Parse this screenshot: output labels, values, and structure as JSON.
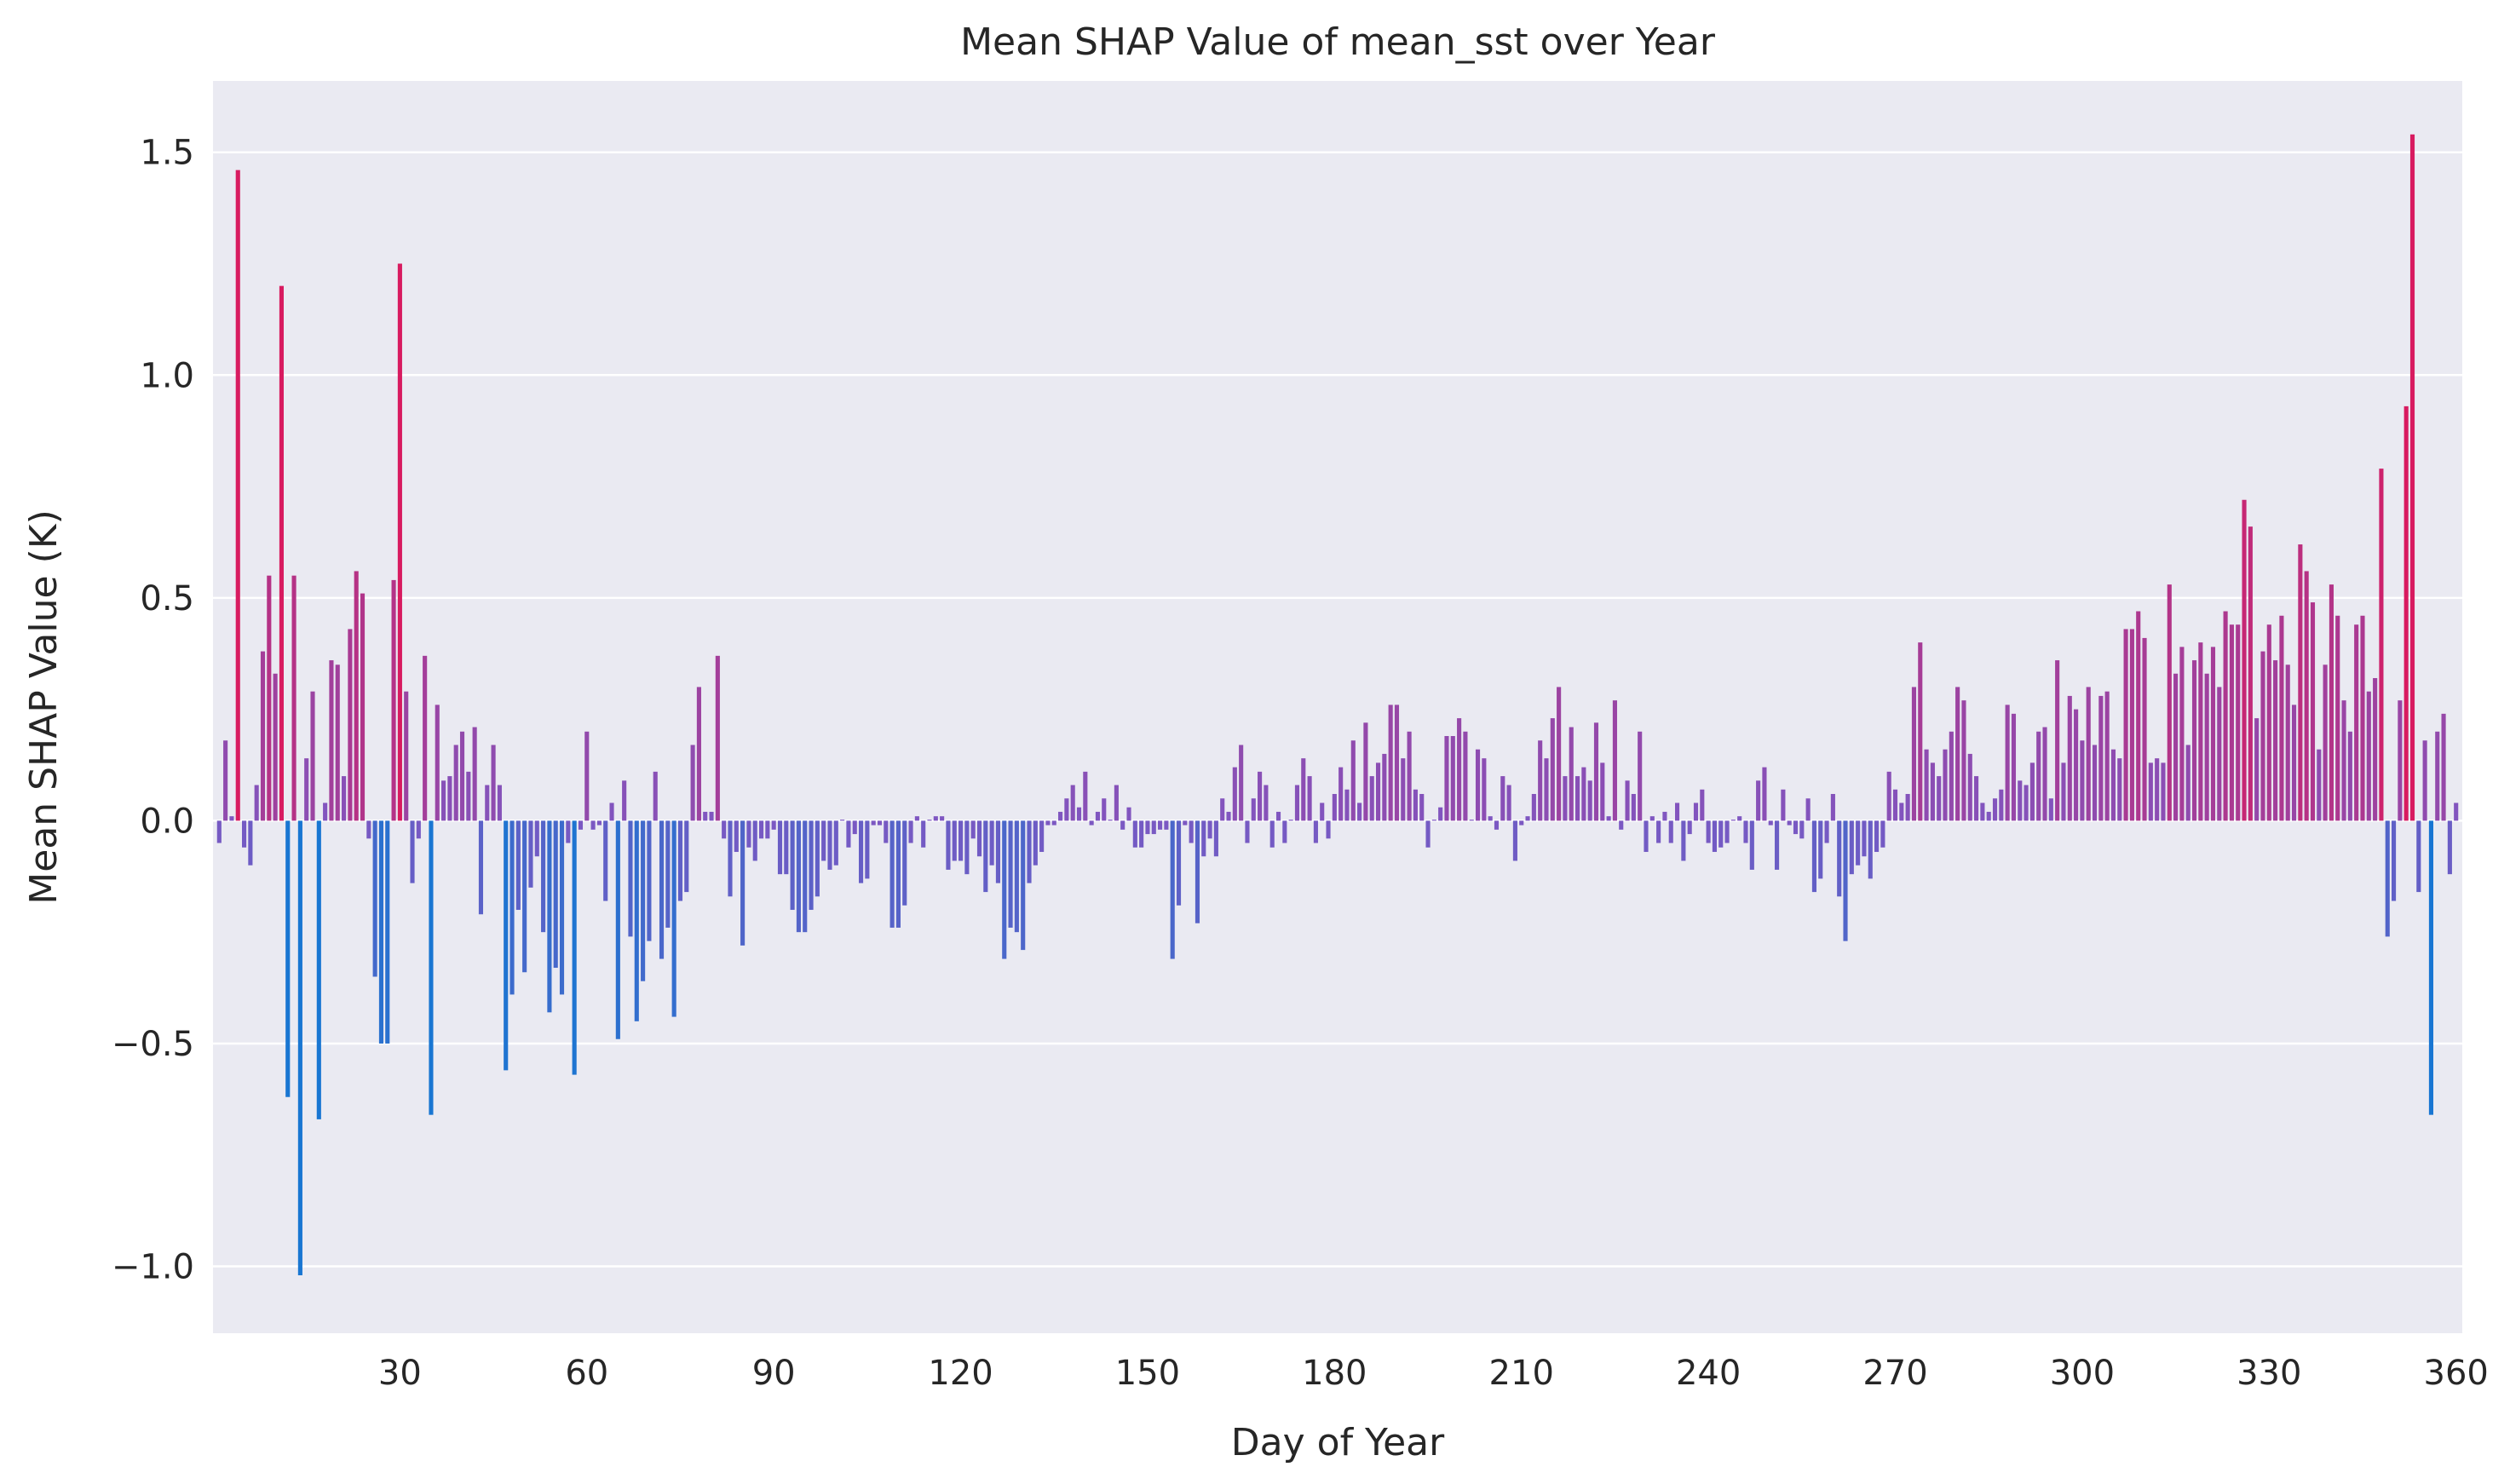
{
  "chart_data": {
    "type": "bar",
    "title": "Mean SHAP Value of mean_sst over Year",
    "xlabel": "Day of Year",
    "ylabel": "Mean SHAP Value (K)",
    "xlim": [
      0,
      361
    ],
    "ylim": [
      -1.15,
      1.66
    ],
    "xticks": [
      30,
      60,
      90,
      120,
      150,
      180,
      210,
      240,
      270,
      300,
      330,
      360
    ],
    "xtick_labels": [
      "30",
      "60",
      "90",
      "120",
      "150",
      "180",
      "210",
      "240",
      "270",
      "300",
      "330",
      "360"
    ],
    "yticks": [
      -1.0,
      -0.5,
      0.0,
      0.5,
      1.0,
      1.5
    ],
    "ytick_labels": [
      "−1.0",
      "−0.5",
      "0.0",
      "0.5",
      "1.0",
      "1.5"
    ],
    "grid": true,
    "colormap": {
      "negative": "#1976d2",
      "neutral": "#7e57c2",
      "positive": "#d81b60"
    },
    "background": "#eaeaf2",
    "x": [
      1,
      2,
      3,
      4,
      5,
      6,
      7,
      8,
      9,
      10,
      11,
      12,
      13,
      14,
      15,
      16,
      17,
      18,
      19,
      20,
      21,
      22,
      23,
      24,
      25,
      26,
      27,
      28,
      29,
      30,
      31,
      32,
      33,
      34,
      35,
      36,
      37,
      38,
      39,
      40,
      41,
      42,
      43,
      44,
      45,
      46,
      47,
      48,
      49,
      50,
      51,
      52,
      53,
      54,
      55,
      56,
      57,
      58,
      59,
      60,
      61,
      62,
      63,
      64,
      65,
      66,
      67,
      68,
      69,
      70,
      71,
      72,
      73,
      74,
      75,
      76,
      77,
      78,
      79,
      80,
      81,
      82,
      83,
      84,
      85,
      86,
      87,
      88,
      89,
      90,
      91,
      92,
      93,
      94,
      95,
      96,
      97,
      98,
      99,
      100,
      101,
      102,
      103,
      104,
      105,
      106,
      107,
      108,
      109,
      110,
      111,
      112,
      113,
      114,
      115,
      116,
      117,
      118,
      119,
      120,
      121,
      122,
      123,
      124,
      125,
      126,
      127,
      128,
      129,
      130,
      131,
      132,
      133,
      134,
      135,
      136,
      137,
      138,
      139,
      140,
      141,
      142,
      143,
      144,
      145,
      146,
      147,
      148,
      149,
      150,
      151,
      152,
      153,
      154,
      155,
      156,
      157,
      158,
      159,
      160,
      161,
      162,
      163,
      164,
      165,
      166,
      167,
      168,
      169,
      170,
      171,
      172,
      173,
      174,
      175,
      176,
      177,
      178,
      179,
      180,
      181,
      182,
      183,
      184,
      185,
      186,
      187,
      188,
      189,
      190,
      191,
      192,
      193,
      194,
      195,
      196,
      197,
      198,
      199,
      200,
      201,
      202,
      203,
      204,
      205,
      206,
      207,
      208,
      209,
      210,
      211,
      212,
      213,
      214,
      215,
      216,
      217,
      218,
      219,
      220,
      221,
      222,
      223,
      224,
      225,
      226,
      227,
      228,
      229,
      230,
      231,
      232,
      233,
      234,
      235,
      236,
      237,
      238,
      239,
      240,
      241,
      242,
      243,
      244,
      245,
      246,
      247,
      248,
      249,
      250,
      251,
      252,
      253,
      254,
      255,
      256,
      257,
      258,
      259,
      260,
      261,
      262,
      263,
      264,
      265,
      266,
      267,
      268,
      269,
      270,
      271,
      272,
      273,
      274,
      275,
      276,
      277,
      278,
      279,
      280,
      281,
      282,
      283,
      284,
      285,
      286,
      287,
      288,
      289,
      290,
      291,
      292,
      293,
      294,
      295,
      296,
      297,
      298,
      299,
      300,
      301,
      302,
      303,
      304,
      305,
      306,
      307,
      308,
      309,
      310,
      311,
      312,
      313,
      314,
      315,
      316,
      317,
      318,
      319,
      320,
      321,
      322,
      323,
      324,
      325,
      326,
      327,
      328,
      329,
      330,
      331,
      332,
      333,
      334,
      335,
      336,
      337,
      338,
      339,
      340,
      341,
      342,
      343,
      344,
      345,
      346,
      347,
      348,
      349,
      350,
      351,
      352,
      353,
      354,
      355,
      356,
      357,
      358,
      359,
      360
    ],
    "values": [
      -0.05,
      0.18,
      0.01,
      1.46,
      -0.06,
      -0.1,
      0.08,
      0.38,
      0.55,
      0.33,
      1.2,
      -0.62,
      0.55,
      -1.02,
      0.14,
      0.29,
      -0.67,
      0.04,
      0.36,
      0.35,
      0.1,
      0.43,
      0.56,
      0.51,
      -0.04,
      -0.35,
      -0.5,
      -0.5,
      0.54,
      1.25,
      0.29,
      -0.14,
      -0.04,
      0.37,
      -0.66,
      0.26,
      0.09,
      0.1,
      0.17,
      0.2,
      0.11,
      0.21,
      -0.21,
      0.08,
      0.17,
      0.08,
      -0.56,
      -0.39,
      -0.2,
      -0.34,
      -0.15,
      -0.08,
      -0.25,
      -0.43,
      -0.33,
      -0.39,
      -0.05,
      -0.57,
      -0.02,
      0.2,
      -0.02,
      -0.01,
      -0.18,
      0.04,
      -0.49,
      0.09,
      -0.26,
      -0.45,
      -0.36,
      -0.27,
      0.11,
      -0.31,
      -0.24,
      -0.44,
      -0.18,
      -0.16,
      0.17,
      0.3,
      0.02,
      0.02,
      0.37,
      -0.04,
      -0.17,
      -0.07,
      -0.28,
      -0.06,
      -0.09,
      -0.04,
      -0.04,
      -0.02,
      -0.12,
      -0.12,
      -0.2,
      -0.25,
      -0.25,
      -0.2,
      -0.17,
      -0.09,
      -0.11,
      -0.1,
      0.0,
      -0.06,
      -0.03,
      -0.14,
      -0.13,
      -0.01,
      -0.01,
      -0.05,
      -0.24,
      -0.24,
      -0.19,
      -0.05,
      0.01,
      -0.06,
      0.0,
      0.01,
      0.01,
      -0.11,
      -0.09,
      -0.09,
      -0.12,
      -0.04,
      -0.08,
      -0.16,
      -0.1,
      -0.14,
      -0.31,
      -0.24,
      -0.25,
      -0.29,
      -0.14,
      -0.1,
      -0.07,
      -0.01,
      -0.01,
      0.02,
      0.05,
      0.08,
      0.03,
      0.11,
      -0.01,
      0.02,
      0.05,
      0.0,
      0.08,
      -0.02,
      0.03,
      -0.06,
      -0.06,
      -0.03,
      -0.03,
      -0.02,
      -0.02,
      -0.31,
      -0.19,
      -0.01,
      -0.05,
      -0.23,
      -0.08,
      -0.04,
      -0.08,
      0.05,
      0.02,
      0.12,
      0.17,
      -0.05,
      0.05,
      0.11,
      0.08,
      -0.06,
      0.02,
      -0.05,
      0.0,
      0.08,
      0.14,
      0.1,
      -0.05,
      0.04,
      -0.04,
      0.06,
      0.12,
      0.07,
      0.18,
      0.04,
      0.22,
      0.1,
      0.13,
      0.15,
      0.26,
      0.26,
      0.14,
      0.2,
      0.07,
      0.06,
      -0.06,
      0.0,
      0.03,
      0.19,
      0.19,
      0.23,
      0.2,
      0.0,
      0.16,
      0.14,
      0.01,
      -0.02,
      0.1,
      0.08,
      -0.09,
      -0.01,
      0.01,
      0.06,
      0.18,
      0.14,
      0.23,
      0.3,
      0.1,
      0.21,
      0.1,
      0.12,
      0.09,
      0.22,
      0.13,
      0.01,
      0.27,
      -0.02,
      0.09,
      0.06,
      0.2,
      -0.07,
      0.01,
      -0.05,
      0.02,
      -0.05,
      0.04,
      -0.09,
      -0.03,
      0.04,
      0.07,
      -0.05,
      -0.07,
      -0.06,
      -0.05,
      0.0,
      0.01,
      -0.05,
      -0.11,
      0.09,
      0.12,
      -0.01,
      -0.11,
      0.07,
      -0.01,
      -0.03,
      -0.04,
      0.05,
      -0.16,
      -0.13,
      -0.05,
      0.06,
      -0.17,
      -0.27,
      -0.12,
      -0.1,
      -0.08,
      -0.13,
      -0.07,
      -0.06,
      0.11,
      0.07,
      0.04,
      0.06,
      0.3,
      0.4,
      0.16,
      0.13,
      0.1,
      0.16,
      0.2,
      0.3,
      0.27,
      0.15,
      0.1,
      0.04,
      0.02,
      0.05,
      0.07,
      0.26,
      0.24,
      0.09,
      0.08,
      0.13,
      0.2,
      0.21,
      0.05,
      0.36,
      0.13,
      0.28,
      0.25,
      0.18,
      0.3,
      0.17,
      0.28,
      0.29,
      0.16,
      0.14,
      0.43,
      0.43,
      0.47,
      0.41,
      0.13,
      0.14,
      0.13,
      0.53,
      0.33,
      0.39,
      0.17,
      0.36,
      0.4,
      0.33,
      0.39,
      0.3,
      0.47,
      0.44,
      0.44,
      0.72,
      0.66,
      0.23,
      0.38,
      0.44,
      0.36,
      0.46,
      0.35,
      0.26,
      0.62,
      0.56,
      0.49,
      0.16,
      0.35,
      0.53,
      0.46,
      0.27,
      0.2,
      0.44,
      0.46,
      0.29,
      0.32,
      0.79,
      -0.26,
      -0.18,
      0.27,
      0.93,
      1.54,
      -0.16,
      0.18,
      -0.66,
      0.2,
      0.24,
      -0.12,
      0.04
    ]
  }
}
